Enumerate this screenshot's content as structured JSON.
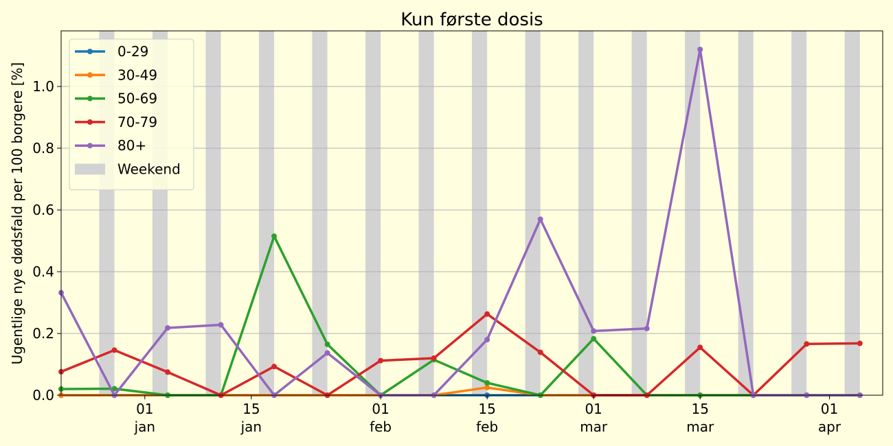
{
  "chart_data": {
    "type": "line",
    "title": "Kun første dosis",
    "xlabel": "",
    "ylabel": "Ugentlige nye dødsfald per 100 borgere [%]",
    "x_axis": {
      "type": "date",
      "min": "2020-12-21",
      "max": "2021-04-08"
    },
    "ylim": [
      0,
      1.18
    ],
    "y_ticks": [
      0.0,
      0.2,
      0.4,
      0.6,
      0.8,
      1.0
    ],
    "y_tick_labels": [
      "0.0",
      "0.2",
      "0.4",
      "0.6",
      "0.8",
      "1.0"
    ],
    "x_ticks": [
      {
        "date": "2021-01-01",
        "day": "01",
        "month": "jan"
      },
      {
        "date": "2021-01-15",
        "day": "15",
        "month": "jan"
      },
      {
        "date": "2021-02-01",
        "day": "01",
        "month": "feb"
      },
      {
        "date": "2021-02-15",
        "day": "15",
        "month": "feb"
      },
      {
        "date": "2021-03-01",
        "day": "01",
        "month": "mar"
      },
      {
        "date": "2021-03-15",
        "day": "15",
        "month": "mar"
      },
      {
        "date": "2021-04-01",
        "day": "01",
        "month": "apr"
      }
    ],
    "grid": "y-axis horizontal lines",
    "legend_position": "top-left",
    "background_color": "#ffffe0",
    "weekend_color": "#d3d3d3",
    "weekends": [
      "2020-12-26",
      "2021-01-02",
      "2021-01-09",
      "2021-01-16",
      "2021-01-23",
      "2021-01-30",
      "2021-02-06",
      "2021-02-13",
      "2021-02-20",
      "2021-02-27",
      "2021-03-06",
      "2021-03-13",
      "2021-03-20",
      "2021-03-27",
      "2021-04-03"
    ],
    "weekend_label": "Weekend",
    "x": [
      "2020-12-21",
      "2020-12-28",
      "2021-01-04",
      "2021-01-11",
      "2021-01-18",
      "2021-01-25",
      "2021-02-01",
      "2021-02-08",
      "2021-02-15",
      "2021-02-22",
      "2021-03-01",
      "2021-03-08",
      "2021-03-15",
      "2021-03-22",
      "2021-03-29",
      "2021-04-05"
    ],
    "series": [
      {
        "name": "0-29",
        "color": "#1f77b4",
        "values": [
          0,
          0,
          0,
          0,
          0,
          0,
          0,
          0,
          0,
          0,
          0,
          0,
          0,
          0,
          0,
          0
        ]
      },
      {
        "name": "30-49",
        "color": "#ff7f0e",
        "values": [
          0,
          0,
          0,
          0,
          0,
          0,
          0,
          0,
          0.025,
          0,
          0,
          0,
          0,
          0,
          0,
          0
        ]
      },
      {
        "name": "50-69",
        "color": "#2ca02c",
        "values": [
          0.02,
          0.021,
          0,
          0,
          0.515,
          0.165,
          0,
          0.115,
          0.04,
          0,
          0.183,
          0,
          0,
          0,
          0,
          0
        ]
      },
      {
        "name": "70-79",
        "color": "#d62728",
        "values": [
          0.076,
          0.146,
          0.075,
          0,
          0.093,
          0,
          0.112,
          0.12,
          0.263,
          0.139,
          0,
          0,
          0.155,
          0,
          0.166,
          0.168
        ]
      },
      {
        "name": "80+",
        "color": "#9467bd",
        "values": [
          0.332,
          0,
          0.218,
          0.228,
          0,
          0.137,
          0,
          0,
          0.18,
          0.57,
          0.208,
          0.216,
          1.12,
          0,
          0,
          0
        ]
      }
    ]
  }
}
